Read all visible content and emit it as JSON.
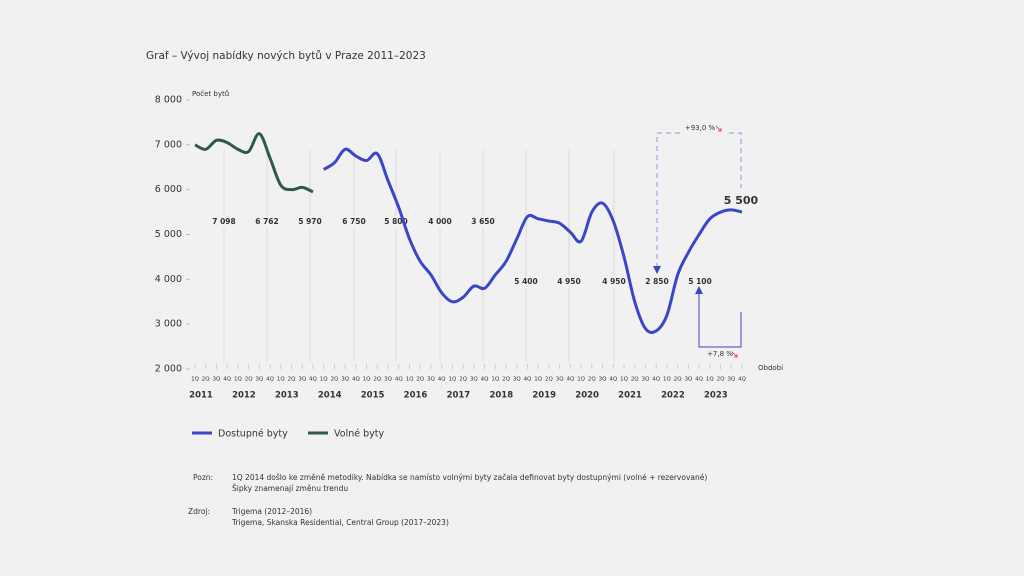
{
  "chart_data": {
    "type": "line",
    "title": "Graf – Vývoj nabídky nových bytů v Praze  2011–2023",
    "y_label": "Počet bytů",
    "x_label": "Období",
    "categories": [
      "1Q",
      "2Q",
      "3Q",
      "4Q",
      "1Q",
      "2Q",
      "3Q",
      "4Q",
      "1Q",
      "2Q",
      "3Q",
      "4Q",
      "1Q",
      "2Q",
      "3Q",
      "4Q",
      "1Q",
      "2Q",
      "3Q",
      "4Q",
      "1Q",
      "2Q",
      "3Q",
      "4Q",
      "1Q",
      "2Q",
      "3Q",
      "4Q",
      "1Q",
      "2Q",
      "3Q",
      "4Q",
      "1Q",
      "2Q",
      "3Q",
      "4Q",
      "1Q",
      "2Q",
      "3Q",
      "4Q",
      "1Q",
      "2Q",
      "3Q",
      "4Q",
      "1Q",
      "2Q",
      "3Q",
      "4Q",
      "1Q",
      "2Q",
      "3Q",
      "4Q"
    ],
    "years": [
      "2011",
      "2012",
      "2013",
      "2014",
      "2015",
      "2016",
      "2017",
      "2018",
      "2019",
      "2020",
      "2021",
      "2022",
      "2023"
    ],
    "series": [
      {
        "name": "Dostupné byty",
        "color": "#3b45c8",
        "values": [
          null,
          null,
          null,
          null,
          null,
          null,
          null,
          null,
          null,
          null,
          null,
          null,
          6450,
          6600,
          6900,
          6750,
          6650,
          6800,
          6200,
          5600,
          4900,
          4400,
          4100,
          3700,
          3500,
          3600,
          3850,
          3800,
          4100,
          4400,
          4900,
          5400,
          5350,
          5300,
          5250,
          5050,
          4850,
          5500,
          5700,
          5300,
          4500,
          3500,
          2900,
          2850,
          3200,
          4100,
          4600,
          5000,
          5350,
          5500,
          5550,
          5500
        ]
      },
      {
        "name": "Volné byty",
        "color": "#2f5a47",
        "values": [
          7000,
          6900,
          7100,
          7050,
          6900,
          6850,
          7250,
          6700,
          6100,
          6000,
          6050,
          5950,
          null,
          null,
          null,
          null,
          null,
          null,
          null,
          null,
          null,
          null,
          null,
          null,
          null,
          null,
          null,
          null,
          null,
          null,
          null,
          null,
          null,
          null,
          null,
          null,
          null,
          null,
          null,
          null,
          null,
          null,
          null,
          null,
          null,
          null,
          null,
          null,
          null,
          null,
          null,
          null
        ]
      }
    ],
    "ylim": [
      2000,
      8000
    ],
    "yticks": [
      {
        "value": 2000,
        "label": "2 000"
      },
      {
        "value": 3000,
        "label": "3 000"
      },
      {
        "value": 4000,
        "label": "4 000"
      },
      {
        "value": 5000,
        "label": "5 000"
      },
      {
        "value": 6000,
        "label": "6 000"
      },
      {
        "value": 7000,
        "label": "7 000"
      },
      {
        "value": 8000,
        "label": "8 000"
      }
    ],
    "annotations": [
      "7 098",
      "6 762",
      "5 970",
      "6 750",
      "5 800",
      "4 000",
      "3 650",
      "5 400",
      "4 950",
      "4 950",
      "2 850",
      "5 100",
      "5 500"
    ],
    "change_labels": [
      "+93,0 %",
      "+7,8 %"
    ]
  },
  "notes": {
    "note_label": "Pozn:",
    "note_lines": [
      "1Q 2014 došlo ke změně metodiky. Nabídka se namísto volnými byty začala definovat byty dostupnými (volné + rezervované)",
      "Šipky znamenají změnu trendu"
    ],
    "source_label": "Zdroj:",
    "source_lines": [
      "Trigema (2012–2016)",
      "Trigema, Skanska Residential, Central Group (2017–2023)"
    ]
  }
}
